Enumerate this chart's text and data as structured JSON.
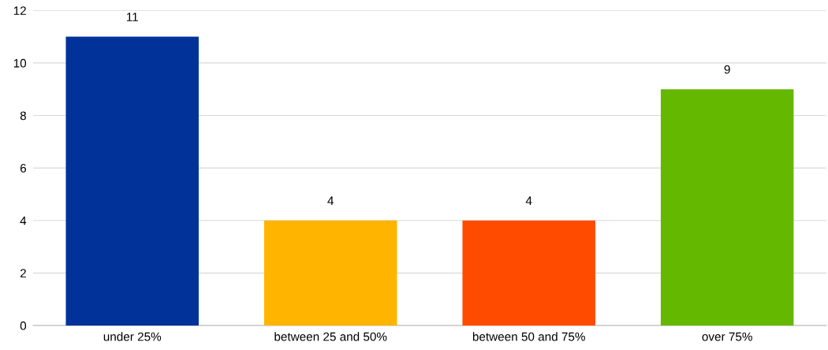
{
  "chart_data": {
    "type": "bar",
    "categories": [
      "under 25%",
      "between 25 and 50%",
      "between 50 and 75%",
      "over 75%"
    ],
    "values": [
      11,
      4,
      4,
      9
    ],
    "colors": [
      "#003299",
      "#ffb400",
      "#ff4b00",
      "#65b800"
    ],
    "ylim": [
      0,
      12
    ],
    "yticks": [
      0,
      2,
      4,
      6,
      8,
      10,
      12
    ],
    "grid": "y",
    "data_labels": true
  }
}
